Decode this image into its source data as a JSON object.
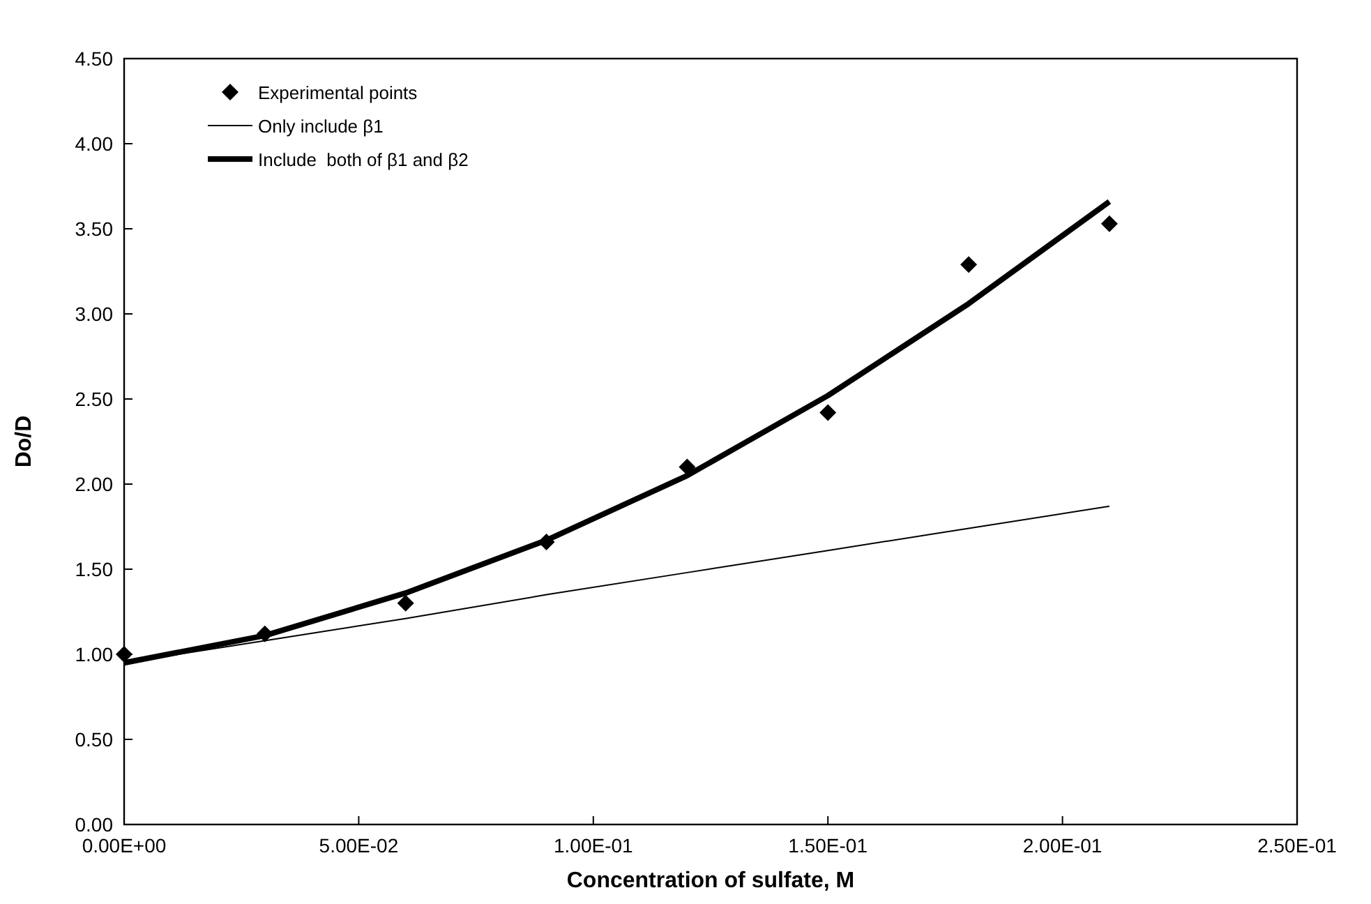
{
  "chart_data": {
    "type": "scatter",
    "xlabel": "Concentration of sulfate, M",
    "ylabel": "Do/D",
    "xlim": [
      0,
      0.25
    ],
    "ylim": [
      0,
      4.5
    ],
    "xticks": [
      {
        "value": 0,
        "label": "0.00E+00"
      },
      {
        "value": 0.05,
        "label": "5.00E-02"
      },
      {
        "value": 0.1,
        "label": "1.00E-01"
      },
      {
        "value": 0.15,
        "label": "1.50E-01"
      },
      {
        "value": 0.2,
        "label": "2.00E-01"
      },
      {
        "value": 0.25,
        "label": "2.50E-01"
      }
    ],
    "yticks": [
      {
        "value": 0,
        "label": "0.00"
      },
      {
        "value": 0.5,
        "label": "0.50"
      },
      {
        "value": 1,
        "label": "1.00"
      },
      {
        "value": 1.5,
        "label": "1.50"
      },
      {
        "value": 2,
        "label": "2.00"
      },
      {
        "value": 2.5,
        "label": "2.50"
      },
      {
        "value": 3,
        "label": "3.00"
      },
      {
        "value": 3.5,
        "label": "3.50"
      },
      {
        "value": 4,
        "label": "4.00"
      },
      {
        "value": 4.5,
        "label": "4.50"
      }
    ],
    "grid": false,
    "legend": "top left",
    "series": [
      {
        "name": "Experimental points",
        "marker": "diamond",
        "color": "#000000",
        "x": [
          0,
          0.03,
          0.06,
          0.09,
          0.12,
          0.15,
          0.18,
          0.21
        ],
        "values": [
          1.0,
          1.12,
          1.3,
          1.66,
          2.1,
          2.42,
          3.29,
          3.53
        ]
      },
      {
        "name": "Only include β1",
        "type": "line",
        "marker": "none",
        "color": "#000000",
        "x": [
          0,
          0.03,
          0.06,
          0.09,
          0.12,
          0.15,
          0.18,
          0.21
        ],
        "values": [
          0.95,
          1.08,
          1.21,
          1.35,
          1.48,
          1.61,
          1.74,
          1.87
        ]
      },
      {
        "name": "Include  both of β1 and β2",
        "type": "line",
        "marker": "none",
        "color": "#000000",
        "x": [
          0,
          0.03,
          0.06,
          0.09,
          0.12,
          0.15,
          0.18,
          0.21
        ],
        "values": [
          0.95,
          1.11,
          1.36,
          1.67,
          2.05,
          2.52,
          3.06,
          3.66
        ]
      }
    ]
  }
}
